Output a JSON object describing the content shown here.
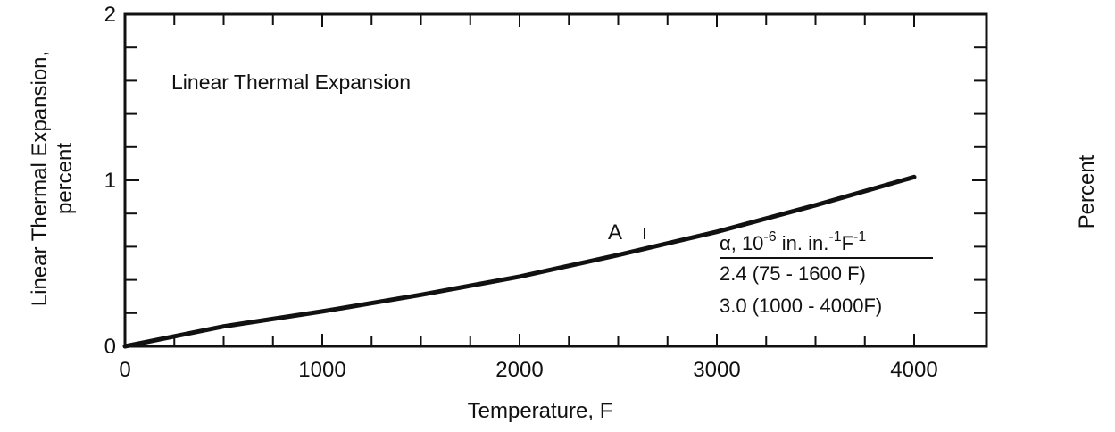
{
  "chart_data": {
    "type": "line",
    "title": "Linear Thermal Expansion",
    "xlabel": "Temperature, F",
    "ylabel_line1": "Linear Thermal Expansion,",
    "ylabel_line2": "percent",
    "right_label": "Percent",
    "xlim": [
      0,
      4200
    ],
    "ylim": [
      0,
      2
    ],
    "x_ticks": [
      0,
      1000,
      2000,
      3000,
      4000
    ],
    "x_tick_labels": [
      "0",
      "1000",
      "2000",
      "3000",
      "4000"
    ],
    "y_ticks": [
      0,
      1,
      2
    ],
    "y_tick_labels": [
      "0",
      "1",
      "2"
    ],
    "grid": false,
    "series": [
      {
        "name": "A",
        "x": [
          0,
          500,
          1000,
          1500,
          2000,
          2500,
          3000,
          3500,
          4000
        ],
        "y": [
          0,
          0.12,
          0.21,
          0.31,
          0.42,
          0.55,
          0.69,
          0.85,
          1.02
        ]
      }
    ],
    "annotations": {
      "curve_label": "A",
      "alpha_prefix": "α, 10",
      "alpha_exp1": "-6",
      "alpha_mid": " in. in.",
      "alpha_exp2": "-1",
      "alpha_unit": "F",
      "alpha_exp3": "-1",
      "row1": "2.4  (75 - 1600 F)",
      "row2": "3.0  (1000 - 4000F)"
    }
  }
}
